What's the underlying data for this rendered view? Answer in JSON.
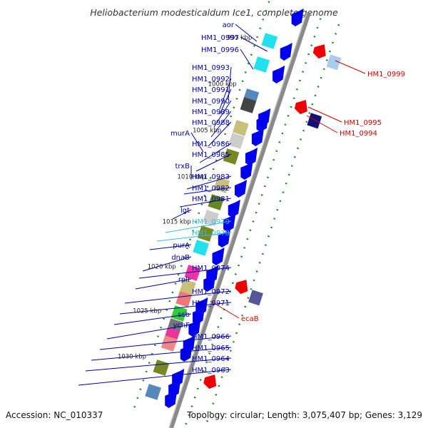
{
  "title": "Heliobacterium modesticaldum Ice1, complete genome",
  "footer": {
    "accession": "Accession: NC_010337",
    "summary": "Topology: circular; Length: 3,075,407 bp; Genes: 3,129"
  },
  "scale_labels": [
    "990 kbp",
    "995 kbp",
    "1000 kbp",
    "1005 kbp",
    "1010 kbp",
    "1015 kbp",
    "1020 kbp",
    "1025 kbp",
    "1030 kbp"
  ],
  "left_labels": [
    {
      "text": "aor",
      "color": "#0000aa"
    },
    {
      "text": "HM1_0997",
      "color": "#0000aa"
    },
    {
      "text": "HM1_0996",
      "color": "#0000aa"
    },
    {
      "text": "HM1_0993",
      "color": "#0000aa"
    },
    {
      "text": "HM1_0992",
      "color": "#0000aa"
    },
    {
      "text": "HM1_0991",
      "color": "#0000aa"
    },
    {
      "text": "HM1_0990",
      "color": "#0000aa"
    },
    {
      "text": "HM1_0989",
      "color": "#0000aa"
    },
    {
      "text": "HM1_0988",
      "color": "#0000aa"
    },
    {
      "text": "murA",
      "color": "#0000aa"
    },
    {
      "text": "HM1_0986",
      "color": "#0000aa"
    },
    {
      "text": "HM1_0985",
      "color": "#0000aa"
    },
    {
      "text": "trxB",
      "color": "#0000aa"
    },
    {
      "text": "HM1_0983",
      "color": "#0000aa"
    },
    {
      "text": "HM1_0982",
      "color": "#0000aa"
    },
    {
      "text": "HM1_0981",
      "color": "#0000aa"
    },
    {
      "text": "lgt",
      "color": "#0000aa"
    },
    {
      "text": "HM1_0979",
      "color": "#33bbdd"
    },
    {
      "text": "HM1_0978",
      "color": "#33bbdd"
    },
    {
      "text": "purA",
      "color": "#0000aa"
    },
    {
      "text": "dnaB",
      "color": "#0000aa"
    },
    {
      "text": "HM1_0974",
      "color": "#0000aa"
    },
    {
      "text": "rplI",
      "color": "#0000aa"
    },
    {
      "text": "HM1_0972",
      "color": "#0000aa"
    },
    {
      "text": "HM1_0971",
      "color": "#0000aa"
    },
    {
      "text": "ssb",
      "color": "#0000aa"
    },
    {
      "text": "ychF",
      "color": "#0000aa"
    },
    {
      "text": "HM1_0966",
      "color": "#0000aa"
    },
    {
      "text": "HM1_0965",
      "color": "#0000aa"
    },
    {
      "text": "HM1_0964",
      "color": "#0000aa"
    },
    {
      "text": "HM1_0963",
      "color": "#0000aa"
    }
  ],
  "right_labels": [
    {
      "text": "HM1_0999",
      "color": "#cc0000"
    },
    {
      "text": "HM1_0995",
      "color": "#cc0000"
    },
    {
      "text": "HM1_0994",
      "color": "#cc0000"
    },
    {
      "text": "ecaB",
      "color": "#cc0000"
    }
  ],
  "colors": {
    "backbone": "#8a8a8a",
    "forward_gene": "#0000ee",
    "reverse_gene": "#ee0000",
    "dashes": "#228822"
  }
}
